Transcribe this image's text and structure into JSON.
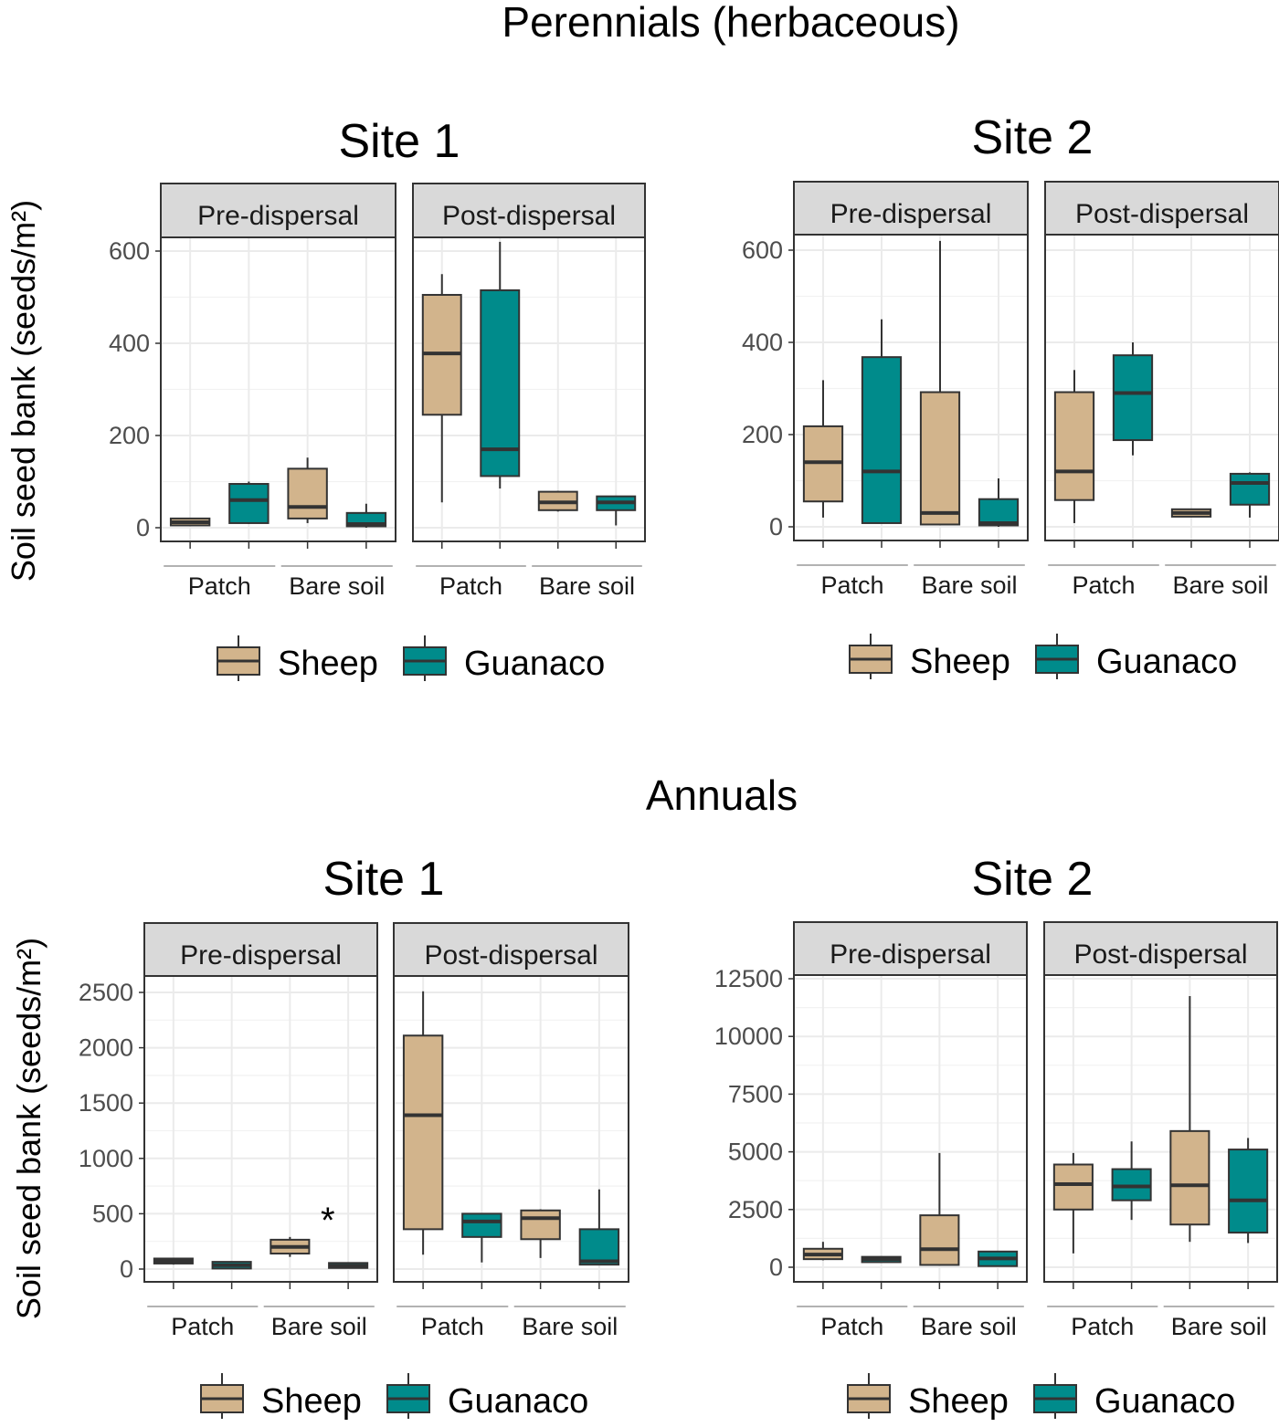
{
  "sections": [
    {
      "title": "Perennials (herbaceous)"
    },
    {
      "title": "Annuals"
    }
  ],
  "ylabel": "Soil seed bank (seeds/m²)",
  "legend": [
    {
      "label": "Sheep",
      "color": "#d2b48c"
    },
    {
      "label": "Guanaco",
      "color": "#008b8b"
    }
  ],
  "chart_data": [
    {
      "type": "boxplot",
      "section": "Perennials (herbaceous)",
      "title": "Site 1",
      "ylabel": "Soil seed bank (seeds/m²)",
      "ylim": [
        -30,
        660
      ],
      "yticks": [
        0,
        200,
        400,
        600
      ],
      "grid": true,
      "legend_position": "bottom",
      "panels": [
        {
          "label": "Pre-dispersal",
          "groups": [
            "Patch",
            "Bare soil"
          ],
          "boxes": [
            {
              "group": "Patch",
              "series": "Sheep",
              "min": 5,
              "q1": 5,
              "median": 12,
              "q3": 20,
              "max": 20
            },
            {
              "group": "Patch",
              "series": "Guanaco",
              "min": 8,
              "q1": 10,
              "median": 60,
              "q3": 95,
              "max": 100
            },
            {
              "group": "Bare soil",
              "series": "Sheep",
              "min": 10,
              "q1": 20,
              "median": 45,
              "q3": 128,
              "max": 152
            },
            {
              "group": "Bare soil",
              "series": "Guanaco",
              "min": 0,
              "q1": 3,
              "median": 8,
              "q3": 32,
              "max": 52
            }
          ]
        },
        {
          "label": "Post-dispersal",
          "groups": [
            "Patch",
            "Bare soil"
          ],
          "boxes": [
            {
              "group": "Patch",
              "series": "Sheep",
              "min": 55,
              "q1": 245,
              "median": 378,
              "q3": 505,
              "max": 550
            },
            {
              "group": "Patch",
              "series": "Guanaco",
              "min": 85,
              "q1": 112,
              "median": 170,
              "q3": 515,
              "max": 620
            },
            {
              "group": "Bare soil",
              "series": "Sheep",
              "min": 35,
              "q1": 38,
              "median": 55,
              "q3": 78,
              "max": 80
            },
            {
              "group": "Bare soil",
              "series": "Guanaco",
              "min": 5,
              "q1": 38,
              "median": 55,
              "q3": 68,
              "max": 68
            }
          ]
        }
      ]
    },
    {
      "type": "boxplot",
      "section": "Perennials (herbaceous)",
      "title": "Site 2",
      "ylim": [
        -30,
        660
      ],
      "yticks": [
        0,
        200,
        400,
        600
      ],
      "grid": true,
      "legend_position": "bottom",
      "panels": [
        {
          "label": "Pre-dispersal",
          "groups": [
            "Patch",
            "Bare soil"
          ],
          "boxes": [
            {
              "group": "Patch",
              "series": "Sheep",
              "min": 20,
              "q1": 55,
              "median": 140,
              "q3": 218,
              "max": 318
            },
            {
              "group": "Patch",
              "series": "Guanaco",
              "min": 8,
              "q1": 8,
              "median": 120,
              "q3": 368,
              "max": 450
            },
            {
              "group": "Bare soil",
              "series": "Sheep",
              "min": 5,
              "q1": 5,
              "median": 30,
              "q3": 292,
              "max": 620
            },
            {
              "group": "Bare soil",
              "series": "Guanaco",
              "min": 0,
              "q1": 3,
              "median": 8,
              "q3": 60,
              "max": 105
            }
          ]
        },
        {
          "label": "Post-dispersal",
          "groups": [
            "Patch",
            "Bare soil"
          ],
          "boxes": [
            {
              "group": "Patch",
              "series": "Sheep",
              "min": 8,
              "q1": 58,
              "median": 120,
              "q3": 292,
              "max": 340
            },
            {
              "group": "Patch",
              "series": "Guanaco",
              "min": 155,
              "q1": 188,
              "median": 290,
              "q3": 372,
              "max": 400
            },
            {
              "group": "Bare soil",
              "series": "Sheep",
              "min": 22,
              "q1": 22,
              "median": 30,
              "q3": 38,
              "max": 38
            },
            {
              "group": "Bare soil",
              "series": "Guanaco",
              "min": 20,
              "q1": 48,
              "median": 95,
              "q3": 115,
              "max": 118
            }
          ]
        }
      ]
    },
    {
      "type": "boxplot",
      "section": "Annuals",
      "title": "Site 1",
      "ylabel": "Soil seed bank (seeds/m²)",
      "ylim": [
        -110,
        2650
      ],
      "yticks": [
        0,
        500,
        1000,
        1500,
        2000,
        2500
      ],
      "grid": true,
      "legend_position": "bottom",
      "annotations": [
        {
          "text": "*",
          "panel": "Pre-dispersal",
          "group": "Bare soil"
        }
      ],
      "panels": [
        {
          "label": "Pre-dispersal",
          "groups": [
            "Patch",
            "Bare soil"
          ],
          "boxes": [
            {
              "group": "Patch",
              "series": "Sheep",
              "min": 40,
              "q1": 50,
              "median": 70,
              "q3": 95,
              "max": 100
            },
            {
              "group": "Patch",
              "series": "Guanaco",
              "min": 5,
              "q1": 5,
              "median": 35,
              "q3": 65,
              "max": 70
            },
            {
              "group": "Bare soil",
              "series": "Sheep",
              "min": 110,
              "q1": 140,
              "median": 200,
              "q3": 265,
              "max": 290
            },
            {
              "group": "Bare soil",
              "series": "Guanaco",
              "min": 5,
              "q1": 10,
              "median": 30,
              "q3": 55,
              "max": 60
            }
          ]
        },
        {
          "label": "Post-dispersal",
          "groups": [
            "Patch",
            "Bare soil"
          ],
          "boxes": [
            {
              "group": "Patch",
              "series": "Sheep",
              "min": 130,
              "q1": 360,
              "median": 1390,
              "q3": 2110,
              "max": 2510
            },
            {
              "group": "Patch",
              "series": "Guanaco",
              "min": 60,
              "q1": 290,
              "median": 430,
              "q3": 500,
              "max": 500
            },
            {
              "group": "Bare soil",
              "series": "Sheep",
              "min": 100,
              "q1": 270,
              "median": 460,
              "q3": 530,
              "max": 540
            },
            {
              "group": "Bare soil",
              "series": "Guanaco",
              "min": 40,
              "q1": 40,
              "median": 70,
              "q3": 360,
              "max": 720
            }
          ]
        }
      ]
    },
    {
      "type": "boxplot",
      "section": "Annuals",
      "title": "Site 2",
      "ylim": [
        -600,
        13200
      ],
      "yticks": [
        0,
        2500,
        5000,
        7500,
        10000,
        12500
      ],
      "grid": true,
      "legend_position": "bottom",
      "panels": [
        {
          "label": "Pre-dispersal",
          "groups": [
            "Patch",
            "Bare soil"
          ],
          "boxes": [
            {
              "group": "Patch",
              "series": "Sheep",
              "min": 300,
              "q1": 350,
              "median": 550,
              "q3": 800,
              "max": 1100
            },
            {
              "group": "Patch",
              "series": "Guanaco",
              "min": 200,
              "q1": 220,
              "median": 350,
              "q3": 450,
              "max": 450
            },
            {
              "group": "Bare soil",
              "series": "Sheep",
              "min": 100,
              "q1": 100,
              "median": 780,
              "q3": 2250,
              "max": 4950
            },
            {
              "group": "Bare soil",
              "series": "Guanaco",
              "min": 50,
              "q1": 50,
              "median": 380,
              "q3": 680,
              "max": 700
            }
          ]
        },
        {
          "label": "Post-dispersal",
          "groups": [
            "Patch",
            "Bare soil"
          ],
          "boxes": [
            {
              "group": "Patch",
              "series": "Sheep",
              "min": 600,
              "q1": 2500,
              "median": 3600,
              "q3": 4450,
              "max": 4950
            },
            {
              "group": "Patch",
              "series": "Guanaco",
              "min": 2050,
              "q1": 2900,
              "median": 3500,
              "q3": 4250,
              "max": 5450
            },
            {
              "group": "Bare soil",
              "series": "Sheep",
              "min": 1100,
              "q1": 1850,
              "median": 3550,
              "q3": 5900,
              "max": 11750
            },
            {
              "group": "Bare soil",
              "series": "Guanaco",
              "min": 1050,
              "q1": 1500,
              "median": 2900,
              "q3": 5100,
              "max": 5600
            }
          ]
        }
      ]
    }
  ]
}
